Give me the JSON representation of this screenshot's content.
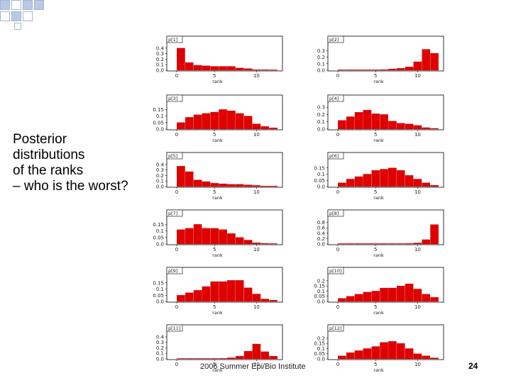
{
  "slide": {
    "title_lines": [
      "Posterior",
      "distributions",
      "of the ranks",
      "– who is the worst?"
    ],
    "footer": "2006 Summer Epi/Bio Institute",
    "page_number": "24"
  },
  "colors": {
    "bar": "#e00000",
    "axis": "#000000",
    "deco": "#b9c9e3"
  },
  "chart_data": [
    {
      "type": "bar",
      "title": "p[1]",
      "xlabel": "rank",
      "categories": [
        1,
        2,
        3,
        4,
        5,
        6,
        7,
        8,
        9,
        10,
        11,
        12
      ],
      "x_ticks": [
        "0",
        "5",
        "10"
      ],
      "y_ticks": [
        "0.0",
        "0.1",
        "0.2",
        "0.3",
        "0.4"
      ],
      "ylim": [
        0,
        0.45
      ],
      "values": [
        0.4,
        0.14,
        0.09,
        0.08,
        0.07,
        0.07,
        0.07,
        0.04,
        0.03,
        0.01,
        0.01,
        0.005
      ]
    },
    {
      "type": "bar",
      "title": "p[2]",
      "xlabel": "rank",
      "categories": [
        1,
        2,
        3,
        4,
        5,
        6,
        7,
        8,
        9,
        10,
        11,
        12
      ],
      "x_ticks": [
        "0",
        "5",
        "10"
      ],
      "y_ticks": [
        "0.0",
        "0.1",
        "0.2",
        "0.3"
      ],
      "ylim": [
        0,
        0.38
      ],
      "values": [
        0.003,
        0.003,
        0.004,
        0.005,
        0.006,
        0.01,
        0.02,
        0.03,
        0.05,
        0.13,
        0.32,
        0.26
      ]
    },
    {
      "type": "bar",
      "title": "p[3]",
      "xlabel": "rank",
      "categories": [
        1,
        2,
        3,
        4,
        5,
        6,
        7,
        8,
        9,
        10,
        11,
        12
      ],
      "x_ticks": [
        "0",
        "5",
        "10"
      ],
      "y_ticks": [
        "0.0",
        "0.05",
        "0.1",
        "0.15"
      ],
      "ylim": [
        0,
        0.19
      ],
      "values": [
        0.05,
        0.09,
        0.11,
        0.12,
        0.13,
        0.15,
        0.14,
        0.12,
        0.1,
        0.04,
        0.02,
        0.01
      ]
    },
    {
      "type": "bar",
      "title": "p[4]",
      "xlabel": "rank",
      "categories": [
        1,
        2,
        3,
        4,
        5,
        6,
        7,
        8,
        9,
        10,
        11,
        12
      ],
      "x_ticks": [
        "0",
        "5",
        "10"
      ],
      "y_ticks": [
        "0.0",
        "0.1",
        "0.2",
        "0.3"
      ],
      "ylim": [
        0,
        0.34
      ],
      "values": [
        0.12,
        0.17,
        0.23,
        0.26,
        0.21,
        0.2,
        0.11,
        0.08,
        0.07,
        0.05,
        0.02,
        0.01
      ]
    },
    {
      "type": "bar",
      "title": "p[5]",
      "xlabel": "rank",
      "categories": [
        1,
        2,
        3,
        4,
        5,
        6,
        7,
        8,
        9,
        10,
        11,
        12
      ],
      "x_ticks": [
        "0",
        "5",
        "10"
      ],
      "y_ticks": [
        "0.0",
        "0.1",
        "0.2",
        "0.3",
        "0.4"
      ],
      "ylim": [
        0,
        0.45
      ],
      "values": [
        0.37,
        0.27,
        0.12,
        0.09,
        0.06,
        0.05,
        0.04,
        0.04,
        0.03,
        0.02,
        0.01,
        0.01
      ]
    },
    {
      "type": "bar",
      "title": "p[6]",
      "xlabel": "rank",
      "categories": [
        1,
        2,
        3,
        4,
        5,
        6,
        7,
        8,
        9,
        10,
        11,
        12
      ],
      "x_ticks": [
        "0",
        "5",
        "10"
      ],
      "y_ticks": [
        "0.0",
        "0.05",
        "0.1",
        "0.15"
      ],
      "ylim": [
        0,
        0.2
      ],
      "values": [
        0.03,
        0.06,
        0.08,
        0.1,
        0.13,
        0.14,
        0.15,
        0.13,
        0.09,
        0.06,
        0.03,
        0.01
      ]
    },
    {
      "type": "bar",
      "title": "p[7]",
      "xlabel": "rank",
      "categories": [
        1,
        2,
        3,
        4,
        5,
        6,
        7,
        8,
        9,
        10,
        11,
        12
      ],
      "x_ticks": [
        "0",
        "5",
        "10"
      ],
      "y_ticks": [
        "0.0",
        "0.05",
        "0.1",
        "0.15"
      ],
      "ylim": [
        0,
        0.19
      ],
      "values": [
        0.11,
        0.12,
        0.15,
        0.12,
        0.12,
        0.11,
        0.08,
        0.05,
        0.03,
        0.01,
        0.005,
        0.002
      ]
    },
    {
      "type": "bar",
      "title": "p[8]",
      "xlabel": "rank",
      "categories": [
        1,
        2,
        3,
        4,
        5,
        6,
        7,
        8,
        9,
        10,
        11,
        12
      ],
      "x_ticks": [
        "0",
        "5",
        "10"
      ],
      "y_ticks": [
        "0.0",
        "0.2",
        "0.4",
        "0.6",
        "0.8"
      ],
      "ylim": [
        0,
        0.92
      ],
      "values": [
        0.0,
        0.0,
        0.0,
        0.0,
        0.005,
        0.005,
        0.01,
        0.01,
        0.02,
        0.04,
        0.16,
        0.72
      ]
    },
    {
      "type": "bar",
      "title": "p[9]",
      "xlabel": "rank",
      "categories": [
        1,
        2,
        3,
        4,
        5,
        6,
        7,
        8,
        9,
        10,
        11,
        12
      ],
      "x_ticks": [
        "0",
        "5",
        "10"
      ],
      "y_ticks": [
        "0.0",
        "0.05",
        "0.1",
        "0.15"
      ],
      "ylim": [
        0,
        0.2
      ],
      "values": [
        0.05,
        0.07,
        0.09,
        0.12,
        0.16,
        0.16,
        0.17,
        0.17,
        0.11,
        0.06,
        0.02,
        0.01
      ]
    },
    {
      "type": "bar",
      "title": "p[10]",
      "xlabel": "rank",
      "categories": [
        1,
        2,
        3,
        4,
        5,
        6,
        7,
        8,
        9,
        10,
        11,
        12
      ],
      "x_ticks": [
        "0",
        "5",
        "10"
      ],
      "y_ticks": [
        "0.0",
        "0.05",
        "0.1",
        "0.15",
        "0.2"
      ],
      "ylim": [
        0,
        0.24
      ],
      "values": [
        0.03,
        0.05,
        0.07,
        0.09,
        0.1,
        0.13,
        0.13,
        0.15,
        0.17,
        0.12,
        0.07,
        0.04
      ]
    },
    {
      "type": "bar",
      "title": "p[11]",
      "xlabel": "rank",
      "categories": [
        1,
        2,
        3,
        4,
        5,
        6,
        7,
        8,
        9,
        10,
        11,
        12
      ],
      "x_ticks": [
        "0",
        "5",
        "10"
      ],
      "y_ticks": [
        "0.0",
        "0.1",
        "0.2",
        "0.3",
        "0.4"
      ],
      "ylim": [
        0,
        0.45
      ],
      "values": [
        0.005,
        0.005,
        0.005,
        0.005,
        0.005,
        0.01,
        0.02,
        0.05,
        0.14,
        0.27,
        0.13,
        0.05
      ]
    },
    {
      "type": "bar",
      "title": "p[12]",
      "xlabel": "rank",
      "categories": [
        1,
        2,
        3,
        4,
        5,
        6,
        7,
        8,
        9,
        10,
        11,
        12
      ],
      "x_ticks": [
        "0",
        "5",
        "10"
      ],
      "y_ticks": [
        "0.0",
        "0.05",
        "0.1",
        "0.15",
        "0.2"
      ],
      "ylim": [
        0,
        0.24
      ],
      "values": [
        0.03,
        0.06,
        0.08,
        0.1,
        0.12,
        0.16,
        0.17,
        0.15,
        0.1,
        0.05,
        0.03,
        0.01
      ]
    }
  ]
}
